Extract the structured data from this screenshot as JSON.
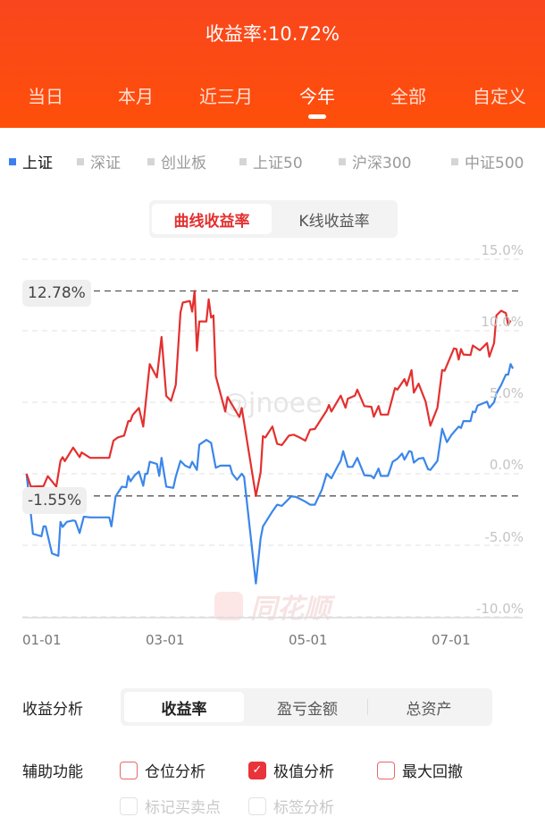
{
  "header": {
    "title": "收益率:10.72%",
    "tabs": [
      "当日",
      "本月",
      "近三月",
      "今年",
      "全部",
      "自定义"
    ],
    "selected_tab": "今年"
  },
  "indices": {
    "items": [
      "上证",
      "深证",
      "创业板",
      "上证50",
      "沪深300",
      "中证500"
    ],
    "selected": "上证"
  },
  "chart_mode": {
    "options": [
      "曲线收益率",
      "K线收益率"
    ],
    "selected": "曲线收益率"
  },
  "watermarks": {
    "user": "@jnoee",
    "brand": "同花顺"
  },
  "colors": {
    "header": "#ff4f0a",
    "my_return": "#e3302f",
    "index": "#3b86ea",
    "accent": "#e8343a"
  },
  "chart_data": {
    "type": "line",
    "ylim": [
      -10,
      15
    ],
    "yticks": [
      "15.0%",
      "10.0%",
      "5.0%",
      "0.0%",
      "-5.0%",
      "-10.0%"
    ],
    "ytick_values": [
      15,
      10,
      5,
      0,
      -5,
      -10
    ],
    "xticks": [
      "01-01",
      "03-01",
      "05-01",
      "07-01"
    ],
    "grid": true,
    "annotations": {
      "max_label": "12.78%",
      "max": 12.78,
      "min_label": "-1.55%",
      "min": -1.55
    },
    "series": [
      {
        "key": "my_return",
        "color": "#e3302f",
        "points": [
          [
            "01-03",
            0
          ],
          [
            "01-05",
            -0.9
          ],
          [
            "01-11",
            -0.86
          ],
          [
            "01-13",
            -0.17
          ],
          [
            "01-17",
            -0.9
          ],
          [
            "01-19",
            0.9
          ],
          [
            "01-20",
            1.16
          ],
          [
            "01-21",
            0.88
          ],
          [
            "01-25",
            1.83
          ],
          [
            "01-28",
            1.16
          ],
          [
            "01-29",
            1.49
          ],
          [
            "02-02",
            1.11
          ],
          [
            "02-11",
            1.11
          ],
          [
            "02-13",
            2.31
          ],
          [
            "02-15",
            2.54
          ],
          [
            "02-18",
            2.67
          ],
          [
            "02-20",
            3.68
          ],
          [
            "02-21",
            3.68
          ],
          [
            "02-22",
            4.1
          ],
          [
            "02-25",
            4.6
          ],
          [
            "02-27",
            3.3
          ],
          [
            "03-02",
            7.67
          ],
          [
            "03-05",
            6.74
          ],
          [
            "03-07",
            9.56
          ],
          [
            "03-09",
            5.44
          ],
          [
            "03-11",
            5.1
          ],
          [
            "03-13",
            6.2
          ],
          [
            "03-15",
            11.28
          ],
          [
            "03-16",
            11.97
          ],
          [
            "03-19",
            12.08
          ],
          [
            "03-20",
            11.34
          ],
          [
            "03-21",
            12.78
          ],
          [
            "03-22",
            8.6
          ],
          [
            "03-23",
            10.65
          ],
          [
            "03-26",
            10.65
          ],
          [
            "03-27",
            12.2
          ],
          [
            "03-28",
            10.92
          ],
          [
            "03-29",
            11.07
          ],
          [
            "03-30",
            6.83
          ],
          [
            "04-03",
            4.35
          ],
          [
            "04-04",
            5.36
          ],
          [
            "04-09",
            3.97
          ],
          [
            "04-10",
            4.6
          ],
          [
            "04-16",
            -1.55
          ],
          [
            "04-18",
            0.1
          ],
          [
            "04-19",
            2.63
          ],
          [
            "04-20",
            2.54
          ],
          [
            "04-23",
            3.3
          ],
          [
            "04-25",
            2.1
          ],
          [
            "04-27",
            2.0
          ],
          [
            "04-30",
            2.67
          ],
          [
            "05-02",
            2.73
          ],
          [
            "05-04",
            2.58
          ],
          [
            "05-07",
            2.31
          ],
          [
            "05-09",
            3.09
          ],
          [
            "05-11",
            3.13
          ],
          [
            "05-16",
            4.41
          ],
          [
            "05-17",
            4.81
          ],
          [
            "05-18",
            4.35
          ],
          [
            "05-22",
            5.46
          ],
          [
            "05-24",
            4.62
          ],
          [
            "05-25",
            5.25
          ],
          [
            "05-28",
            5.46
          ],
          [
            "05-29",
            5.88
          ],
          [
            "06-01",
            4.73
          ],
          [
            "06-04",
            4.68
          ],
          [
            "06-05",
            3.99
          ],
          [
            "06-07",
            4.73
          ],
          [
            "06-08",
            4.14
          ],
          [
            "06-11",
            4.14
          ],
          [
            "06-14",
            5.99
          ],
          [
            "06-15",
            5.88
          ],
          [
            "06-18",
            6.62
          ],
          [
            "06-19",
            6.16
          ],
          [
            "06-21",
            7.25
          ],
          [
            "06-22",
            5.67
          ],
          [
            "06-24",
            6.3
          ],
          [
            "06-27",
            5.04
          ],
          [
            "06-29",
            3.36
          ],
          [
            "07-02",
            4.62
          ],
          [
            "07-04",
            7.25
          ],
          [
            "07-05",
            7.2
          ],
          [
            "07-09",
            8.76
          ],
          [
            "07-10",
            8.72
          ],
          [
            "07-11",
            7.98
          ],
          [
            "07-12",
            8.72
          ],
          [
            "07-13",
            8.34
          ],
          [
            "07-16",
            8.3
          ],
          [
            "07-17",
            8.97
          ],
          [
            "07-20",
            8.63
          ],
          [
            "07-23",
            9.14
          ],
          [
            "07-24",
            8.19
          ],
          [
            "07-26",
            9.14
          ],
          [
            "07-27",
            11.07
          ],
          [
            "07-29",
            11.4
          ],
          [
            "07-31",
            11.24
          ],
          [
            "08-01",
            10.4
          ],
          [
            "08-02",
            10.72
          ]
        ]
      },
      {
        "key": "index",
        "color": "#3b86ea",
        "points": [
          [
            "01-03",
            0
          ],
          [
            "01-06",
            -4.2
          ],
          [
            "01-10",
            -4.37
          ],
          [
            "01-11",
            -3.68
          ],
          [
            "01-12",
            -3.68
          ],
          [
            "01-15",
            -5.57
          ],
          [
            "01-18",
            -5.74
          ],
          [
            "01-19",
            -3.36
          ],
          [
            "01-20",
            -3.72
          ],
          [
            "01-22",
            -3.36
          ],
          [
            "01-25",
            -3.26
          ],
          [
            "01-26",
            -3.3
          ],
          [
            "01-28",
            -4.14
          ],
          [
            "01-30",
            -3.0
          ],
          [
            "02-02",
            -3.05
          ],
          [
            "02-11",
            -3.05
          ],
          [
            "02-12",
            -3.68
          ],
          [
            "02-14",
            -1.58
          ],
          [
            "02-17",
            -0.9
          ],
          [
            "02-19",
            -0.95
          ],
          [
            "02-20",
            -0.15
          ],
          [
            "02-21",
            -0.53
          ],
          [
            "02-23",
            -0.1
          ],
          [
            "02-25",
            0.15
          ],
          [
            "02-27",
            -0.84
          ],
          [
            "02-28",
            0
          ],
          [
            "03-01",
            0
          ],
          [
            "03-02",
            0.84
          ],
          [
            "03-05",
            0.69
          ],
          [
            "03-06",
            -0.15
          ],
          [
            "03-07",
            1.11
          ],
          [
            "03-09",
            -0.9
          ],
          [
            "03-12",
            -0.99
          ],
          [
            "03-13",
            -0.21
          ],
          [
            "03-15",
            0.9
          ],
          [
            "03-17",
            0.57
          ],
          [
            "03-19",
            0.42
          ],
          [
            "03-20",
            0.84
          ],
          [
            "03-22",
            0.27
          ],
          [
            "03-23",
            2.04
          ],
          [
            "03-26",
            2.37
          ],
          [
            "03-28",
            2.16
          ],
          [
            "03-30",
            0.42
          ],
          [
            "04-01",
            0.57
          ],
          [
            "04-05",
            0.57
          ],
          [
            "04-06",
            0
          ],
          [
            "04-08",
            -0.42
          ],
          [
            "04-10",
            0
          ],
          [
            "04-11",
            -0.21
          ],
          [
            "04-16",
            -7.67
          ],
          [
            "04-18",
            -4.52
          ],
          [
            "04-19",
            -3.68
          ],
          [
            "04-23",
            -2.63
          ],
          [
            "04-25",
            -2.16
          ],
          [
            "04-27",
            -2.25
          ],
          [
            "05-01",
            -1.58
          ],
          [
            "05-03",
            -1.62
          ],
          [
            "05-07",
            -1.95
          ],
          [
            "05-09",
            -2.16
          ],
          [
            "05-11",
            -2.16
          ],
          [
            "05-14",
            -1.11
          ],
          [
            "05-16",
            0
          ],
          [
            "05-18",
            -0.32
          ],
          [
            "05-21",
            0.63
          ],
          [
            "05-22",
            0.9
          ],
          [
            "05-23",
            1.58
          ],
          [
            "05-25",
            0.48
          ],
          [
            "05-27",
            0.48
          ],
          [
            "05-29",
            1.11
          ],
          [
            "06-01",
            -0.1
          ],
          [
            "06-04",
            -0.15
          ],
          [
            "06-05",
            -0.32
          ],
          [
            "06-07",
            0.36
          ],
          [
            "06-08",
            -0.15
          ],
          [
            "06-11",
            -0.15
          ],
          [
            "06-13",
            0.84
          ],
          [
            "06-15",
            1.05
          ],
          [
            "06-17",
            1.41
          ],
          [
            "06-18",
            0.99
          ],
          [
            "06-20",
            1.58
          ],
          [
            "06-21",
            1.53
          ],
          [
            "06-22",
            0.78
          ],
          [
            "06-24",
            1.05
          ],
          [
            "06-26",
            1.11
          ],
          [
            "06-28",
            0.32
          ],
          [
            "06-29",
            0.27
          ],
          [
            "07-02",
            0.9
          ],
          [
            "07-04",
            3.15
          ],
          [
            "07-06",
            2.21
          ],
          [
            "07-08",
            2.73
          ],
          [
            "07-11",
            3.3
          ],
          [
            "07-12",
            3.2
          ],
          [
            "07-13",
            3.68
          ],
          [
            "07-16",
            3.68
          ],
          [
            "07-17",
            4.35
          ],
          [
            "07-18",
            4.3
          ],
          [
            "07-19",
            4.77
          ],
          [
            "07-23",
            5.04
          ],
          [
            "07-24",
            4.62
          ],
          [
            "07-26",
            5.0
          ],
          [
            "07-27",
            5.61
          ],
          [
            "07-29",
            6.2
          ],
          [
            "07-31",
            6.93
          ],
          [
            "08-01",
            6.93
          ],
          [
            "08-02",
            7.67
          ],
          [
            "08-03",
            7.35
          ]
        ]
      }
    ]
  },
  "analysis": {
    "label": "收益分析",
    "options": [
      "收益率",
      "盈亏金额",
      "总资产"
    ],
    "selected": "收益率"
  },
  "aux": {
    "label": "辅助功能",
    "items": [
      {
        "label": "仓位分析",
        "checked": false,
        "enabled": true
      },
      {
        "label": "极值分析",
        "checked": true,
        "enabled": true
      },
      {
        "label": "最大回撤",
        "checked": false,
        "enabled": true
      },
      {
        "label": "标记买卖点",
        "checked": false,
        "enabled": false
      },
      {
        "label": "标签分析",
        "checked": false,
        "enabled": false
      }
    ]
  }
}
